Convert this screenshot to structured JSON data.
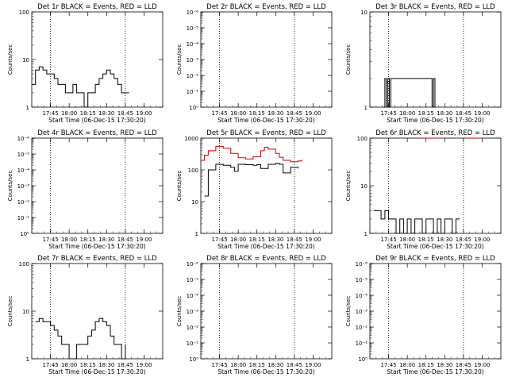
{
  "chart_data": [
    {
      "type": "line",
      "title": "Det 1r BLACK = Events, RED = LLD",
      "xlabel": "Start Time (06-Dec-15 17:30:20)",
      "ylabel": "Counts/sec",
      "x_ticks": [
        "17:45",
        "18:00",
        "18:15",
        "18:30",
        "18:45",
        "19:00"
      ],
      "yscale": "log",
      "ylim": [
        1,
        100
      ],
      "y_ticks": [
        "1",
        "10",
        "100"
      ],
      "legend": "none",
      "grid": false,
      "series": [
        {
          "color": "#000000",
          "x": [
            17.5,
            17.55,
            17.6,
            17.65,
            17.7,
            17.75,
            17.8,
            17.85,
            17.9,
            17.95,
            18.0,
            18.05,
            18.1,
            18.15,
            18.2,
            18.25,
            18.3,
            18.35,
            18.4,
            18.45,
            18.5,
            18.55,
            18.6,
            18.65,
            18.7,
            18.75,
            18.8
          ],
          "values": [
            3,
            6,
            7,
            6,
            5,
            5,
            4,
            3,
            3,
            2,
            2,
            3,
            2,
            2,
            1,
            2,
            2,
            3,
            4,
            5,
            6,
            5,
            4,
            3,
            2,
            2,
            2
          ]
        }
      ]
    },
    {
      "type": "line",
      "title": "Det 2r BLACK = Events, RED = LLD",
      "xlabel": "Start Time (06-Dec-15 17:30:20)",
      "ylabel": "Counts/sec",
      "x_ticks": [
        "17:45",
        "18:00",
        "18:15",
        "18:30",
        "18:45",
        "19:00"
      ],
      "yscale": "log",
      "ylim": [
        1,
        1000000
      ],
      "y_ticks": [
        "10⁰",
        "10⁻¹",
        "10⁻²",
        "10⁻³",
        "10⁻⁴",
        "10⁻⁵",
        "10⁻⁶"
      ],
      "legend": "none",
      "grid": false,
      "series": []
    },
    {
      "type": "line",
      "title": "Det 3r BLACK = Events, RED = LLD",
      "xlabel": "Start Time (06-Dec-15 17:30:20)",
      "ylabel": "Counts/sec",
      "x_ticks": [
        "17:45",
        "18:00",
        "18:15",
        "18:30",
        "18:45",
        "19:00"
      ],
      "yscale": "log",
      "ylim": [
        1,
        10
      ],
      "y_ticks": [
        "1",
        "10"
      ],
      "legend": "none",
      "grid": false,
      "series": [
        {
          "color": "#000000",
          "x": [
            17.68,
            17.7,
            17.72,
            17.74,
            17.76,
            17.78,
            18.33,
            18.35,
            18.37
          ],
          "values": [
            1,
            2,
            1,
            2,
            1,
            2,
            1,
            2,
            1
          ]
        }
      ]
    },
    {
      "type": "line",
      "title": "Det 4r BLACK = Events, RED = LLD",
      "xlabel": "Start Time (06-Dec-15 17:30:20)",
      "ylabel": "Counts/sec",
      "x_ticks": [
        "17:45",
        "18:00",
        "18:15",
        "18:30",
        "18:45",
        "19:00"
      ],
      "yscale": "log",
      "ylim": [
        1,
        1000000
      ],
      "y_ticks": [
        "10⁰",
        "10⁻¹",
        "10⁻²",
        "10⁻³",
        "10⁻⁴",
        "10⁻⁵",
        "10⁻⁶"
      ],
      "legend": "none",
      "grid": false,
      "series": []
    },
    {
      "type": "line",
      "title": "Det 5r BLACK = Events, RED = LLD",
      "xlabel": "Start Time (06-Dec-15 17:30:20)",
      "ylabel": "Counts/sec",
      "x_ticks": [
        "17:45",
        "18:00",
        "18:15",
        "18:30",
        "18:45",
        "19:00"
      ],
      "yscale": "log",
      "ylim": [
        1,
        1000
      ],
      "y_ticks": [
        "1",
        "10",
        "100",
        "1000"
      ],
      "legend": "none",
      "grid": false,
      "series": [
        {
          "color": "#000000",
          "x": [
            17.55,
            17.6,
            17.7,
            17.8,
            17.9,
            17.95,
            18.0,
            18.1,
            18.2,
            18.25,
            18.3,
            18.4,
            18.5,
            18.55,
            18.6,
            18.7,
            18.8
          ],
          "values": [
            15,
            100,
            150,
            140,
            120,
            90,
            150,
            145,
            140,
            145,
            110,
            150,
            160,
            150,
            80,
            120,
            110
          ]
        },
        {
          "color": "#cc0000",
          "x": [
            17.5,
            17.55,
            17.6,
            17.7,
            17.8,
            17.9,
            18.0,
            18.1,
            18.2,
            18.3,
            18.35,
            18.4,
            18.5,
            18.55,
            18.6,
            18.7,
            18.8,
            18.85
          ],
          "values": [
            200,
            290,
            400,
            550,
            480,
            330,
            240,
            220,
            260,
            400,
            520,
            450,
            330,
            250,
            200,
            180,
            190,
            210
          ]
        }
      ]
    },
    {
      "type": "line",
      "title": "Det 6r BLACK = Events, RED = LLD",
      "xlabel": "Start Time (06-Dec-15 17:30:20)",
      "ylabel": "Counts/sec",
      "x_ticks": [
        "17:45",
        "18:00",
        "18:15",
        "18:30",
        "18:45",
        "19:00"
      ],
      "yscale": "log",
      "ylim": [
        1,
        100
      ],
      "y_ticks": [
        "1",
        "10",
        "100"
      ],
      "legend": "none",
      "grid": false,
      "series": [
        {
          "color": "#000000",
          "x": [
            17.55,
            17.6,
            17.65,
            17.7,
            17.75,
            17.8,
            17.85,
            17.9,
            17.95,
            18.0,
            18.05,
            18.1,
            18.15,
            18.2,
            18.25,
            18.3,
            18.35,
            18.4,
            18.45,
            18.5,
            18.55,
            18.6,
            18.65,
            18.7
          ],
          "values": [
            3,
            3,
            2,
            3,
            2,
            2,
            1,
            2,
            1,
            2,
            1,
            2,
            2,
            1,
            2,
            2,
            1,
            2,
            1,
            2,
            2,
            1,
            2,
            2
          ]
        },
        {
          "color": "#cc0000",
          "x": [
            18.2,
            18.25,
            18.3,
            18.35,
            18.4,
            18.45
          ],
          "values": [
            100,
            100,
            100,
            100,
            100,
            100
          ]
        },
        {
          "color": "#cc0000",
          "x": [
            18.8,
            18.85,
            18.9,
            18.95,
            19.0
          ],
          "values": [
            100,
            100,
            100,
            100,
            100
          ]
        }
      ]
    },
    {
      "type": "line",
      "title": "Det 7r BLACK = Events, RED = LLD",
      "xlabel": "Start Time (06-Dec-15 17:30:20)",
      "ylabel": "Counts/sec",
      "x_ticks": [
        "17:45",
        "18:00",
        "18:15",
        "18:30",
        "18:45",
        "19:00"
      ],
      "yscale": "log",
      "ylim": [
        1,
        100
      ],
      "y_ticks": [
        "1",
        "10",
        "100"
      ],
      "legend": "none",
      "grid": false,
      "series": [
        {
          "color": "#000000",
          "x": [
            17.55,
            17.6,
            17.65,
            17.7,
            17.75,
            17.8,
            17.85,
            17.9,
            17.95,
            18.0,
            18.05,
            18.1,
            18.15,
            18.2,
            18.25,
            18.3,
            18.35,
            18.4,
            18.45,
            18.5,
            18.55,
            18.6,
            18.65,
            18.7,
            18.75
          ],
          "values": [
            6,
            7,
            6,
            6,
            5,
            4,
            3,
            2,
            2,
            1,
            1,
            2,
            2,
            2,
            3,
            4,
            6,
            7,
            6,
            5,
            3,
            2,
            2,
            1,
            2
          ]
        }
      ]
    },
    {
      "type": "line",
      "title": "Det 8r BLACK = Events, RED = LLD",
      "xlabel": "Start Time (06-Dec-15 17:30:20)",
      "ylabel": "Counts/sec",
      "x_ticks": [
        "17:45",
        "18:00",
        "18:15",
        "18:30",
        "18:45",
        "19:00"
      ],
      "yscale": "log",
      "ylim": [
        1,
        1000000
      ],
      "y_ticks": [
        "10⁰",
        "10⁻¹",
        "10⁻²",
        "10⁻³",
        "10⁻⁴",
        "10⁻⁵",
        "10⁻⁶"
      ],
      "legend": "none",
      "grid": false,
      "series": []
    },
    {
      "type": "line",
      "title": "Det 9r BLACK = Events, RED = LLD",
      "xlabel": "Start Time (06-Dec-15 17:30:20)",
      "ylabel": "Counts/sec",
      "x_ticks": [
        "17:45",
        "18:00",
        "18:15",
        "18:30",
        "18:45",
        "19:00"
      ],
      "yscale": "log",
      "ylim": [
        1,
        1000000
      ],
      "y_ticks": [
        "10⁰",
        "10⁻¹",
        "10⁻²",
        "10⁻³",
        "10⁻⁴",
        "10⁻⁵",
        "10⁻⁶"
      ],
      "legend": "none",
      "grid": false,
      "series": []
    }
  ]
}
